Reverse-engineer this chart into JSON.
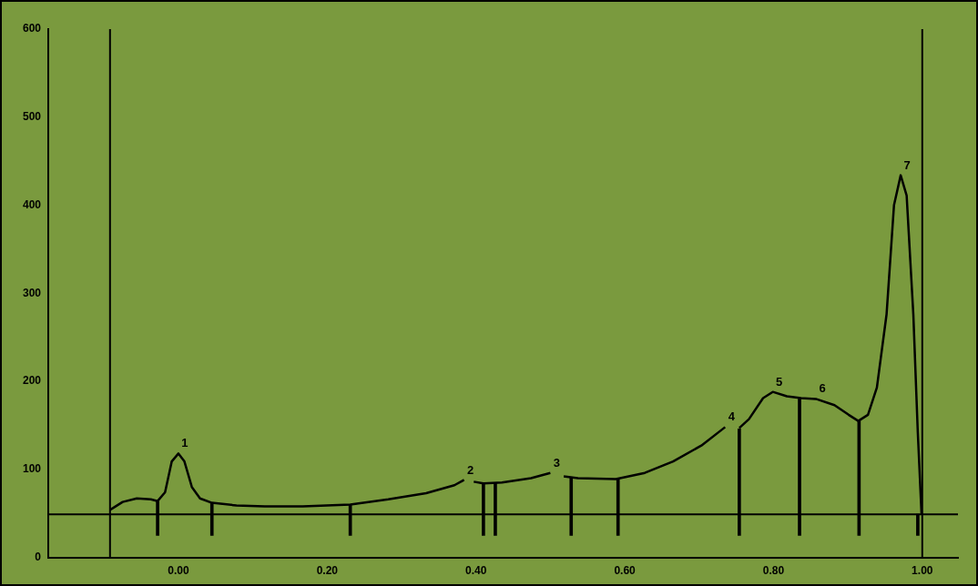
{
  "chart_data": {
    "type": "line",
    "xlim": [
      -0.175,
      1.048
    ],
    "ylim": [
      0,
      600
    ],
    "xticks": [
      {
        "value": 0,
        "label": "0.00"
      },
      {
        "value": 0.2,
        "label": "0.20"
      },
      {
        "value": 0.4,
        "label": "0.40"
      },
      {
        "value": 0.6,
        "label": "0.60"
      },
      {
        "value": 0.8,
        "label": "0.80"
      },
      {
        "value": 1,
        "label": "1.00"
      }
    ],
    "yticks": [
      0,
      100,
      200,
      300,
      400,
      500,
      600
    ],
    "grid": false,
    "legend": false,
    "marker": "none",
    "line_style": "solid",
    "series": [
      {
        "color": "#000000",
        "x": [
          -0.092,
          -0.075,
          -0.056,
          -0.037,
          -0.028,
          -0.018,
          -0.009,
          0.0,
          0.008,
          0.018,
          0.029,
          0.045,
          0.078,
          0.116,
          0.167,
          0.231,
          0.282,
          0.333,
          0.371,
          0.384,
          0.39,
          0.397,
          0.41,
          0.435,
          0.474,
          0.5,
          0.509,
          0.518,
          0.537,
          0.588,
          0.627,
          0.665,
          0.703,
          0.735,
          0.745,
          0.754,
          0.767,
          0.786,
          0.799,
          0.818,
          0.837,
          0.857,
          0.882,
          0.901,
          0.914,
          0.927,
          0.939,
          0.952,
          0.962,
          0.971,
          0.979,
          0.988,
          0.994,
          0.999
        ],
        "values": [
          54,
          63,
          67,
          66,
          64,
          74,
          109,
          118,
          109,
          80,
          67,
          62,
          59,
          58,
          58,
          60,
          66,
          73,
          82,
          88,
          null,
          86,
          84,
          85,
          90,
          96,
          null,
          92,
          90,
          89,
          96,
          109,
          127,
          148,
          null,
          147,
          157,
          181,
          188,
          183,
          181,
          180,
          173,
          162,
          155,
          162,
          193,
          276,
          400,
          434,
          411,
          276,
          142,
          49
        ]
      },
      {
        "type": "bar",
        "color": "#000000",
        "x": [
          -0.028,
          0.045,
          0.231,
          0.41,
          0.426,
          0.528,
          0.591,
          0.754,
          0.835,
          0.915,
          0.994
        ],
        "base": [
          25,
          25,
          25,
          25,
          25,
          25,
          25,
          25,
          25,
          25,
          25
        ],
        "values": [
          39,
          37,
          35,
          59,
          59,
          66,
          65,
          121,
          155,
          130,
          24
        ]
      }
    ],
    "ref_lines": [
      {
        "axis": "x",
        "value": -0.092,
        "color": "#000000"
      },
      {
        "axis": "x",
        "value": 1.0,
        "color": "#000000"
      },
      {
        "axis": "y",
        "value": 49,
        "color": "#000000"
      }
    ],
    "annotations": [
      {
        "text": "1",
        "x": 0.0,
        "y": 118
      },
      {
        "text": "2",
        "x": 0.384,
        "y": 88
      },
      {
        "text": "3",
        "x": 0.5,
        "y": 96
      },
      {
        "text": "4",
        "x": 0.735,
        "y": 148
      },
      {
        "text": "5",
        "x": 0.799,
        "y": 188
      },
      {
        "text": "6",
        "x": 0.857,
        "y": 180
      },
      {
        "text": "7",
        "x": 0.971,
        "y": 434
      }
    ]
  }
}
